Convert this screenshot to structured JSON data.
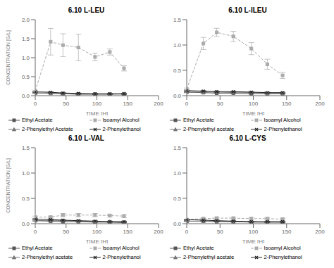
{
  "chart_data": [
    {
      "type": "line",
      "title": "6.10 L-LEU",
      "x_label": "TIME [H]",
      "y_label": "CONCENTRATION [G/L]",
      "grid": false,
      "x": [
        0,
        25,
        45,
        70,
        97,
        121,
        144
      ],
      "xlim": [
        0,
        200
      ],
      "xticks": [
        0,
        50,
        100,
        150,
        200
      ],
      "ylim": [
        0,
        2
      ],
      "yticks": [
        {
          "value": 0,
          "label": "0.0"
        },
        0.5,
        {
          "value": 1.0,
          "label": "1.0"
        },
        1.5,
        {
          "value": 2.0,
          "label": "2.0"
        }
      ],
      "series": [
        {
          "name": "Ethyl Acetate",
          "color": "#555555",
          "marker": "square",
          "line_style": "solid",
          "values": [
            0.07,
            0.07,
            0.05,
            0.04,
            0.04,
            0.04,
            0.05
          ],
          "errors": [
            0.01,
            0.01,
            0.01,
            0.01,
            0.01,
            0.01,
            0.01
          ]
        },
        {
          "name": "Isoamyl Alcohol",
          "color": "#aaaaaa",
          "marker": "square",
          "line_style": "dashed",
          "values": [
            0.12,
            1.42,
            1.33,
            1.27,
            1.02,
            1.15,
            0.72
          ],
          "errors": [
            0.02,
            0.35,
            0.3,
            0.35,
            0.1,
            0.08,
            0.07
          ]
        },
        {
          "name": "2-Phenylethyl Acetate",
          "color": "#777777",
          "marker": "triangle",
          "line_style": "solid",
          "values": [
            0.07,
            0.06,
            0.05,
            0.04,
            0.04,
            0.04,
            0.04
          ],
          "errors": [
            0.01,
            0.01,
            0.01,
            0.01,
            0.01,
            0.01,
            0.01
          ]
        },
        {
          "name": "2-Phenylethanol",
          "color": "#222222",
          "marker": "x",
          "line_style": "solid",
          "values": [
            0.1,
            0.09,
            0.07,
            0.06,
            0.05,
            0.05,
            0.05
          ],
          "errors": [
            0.01,
            0.01,
            0.01,
            0.01,
            0.01,
            0.01,
            0.01
          ]
        }
      ]
    },
    {
      "type": "line",
      "title": "6.10 L-ILEU",
      "x_label": "TIME [H]",
      "grid": false,
      "x": [
        0,
        25,
        45,
        70,
        97,
        121,
        144
      ],
      "xlim": [
        0,
        200
      ],
      "xticks": [
        0,
        50,
        100,
        150,
        200
      ],
      "ylim": [
        0,
        1.5
      ],
      "yticks": [
        {
          "value": 0,
          "label": "0.0"
        },
        0.5,
        {
          "value": 1.0,
          "label": "1.0"
        },
        1.5
      ],
      "series": [
        {
          "name": "Ethyl Acetate",
          "color": "#555555",
          "marker": "square",
          "line_style": "solid",
          "values": [
            0.07,
            0.06,
            0.05,
            0.05,
            0.04,
            0.04,
            0.04
          ],
          "errors": [
            0.01,
            0.01,
            0.01,
            0.01,
            0.01,
            0.01,
            0.01
          ]
        },
        {
          "name": "Isoamyl Alcohol",
          "color": "#aaaaaa",
          "marker": "square",
          "line_style": "dashed",
          "values": [
            0.13,
            1.03,
            1.25,
            1.17,
            0.93,
            0.62,
            0.4
          ],
          "errors": [
            0.02,
            0.12,
            0.08,
            0.1,
            0.12,
            0.1,
            0.06
          ]
        },
        {
          "name": "2-Phenylethyl acetate",
          "color": "#777777",
          "marker": "triangle",
          "line_style": "solid",
          "values": [
            0.07,
            0.07,
            0.07,
            0.06,
            0.06,
            0.05,
            0.05
          ],
          "errors": [
            0.01,
            0.01,
            0.01,
            0.01,
            0.01,
            0.01,
            0.01
          ]
        },
        {
          "name": "2-Phenylethanol",
          "color": "#222222",
          "marker": "x",
          "line_style": "solid",
          "values": [
            0.1,
            0.09,
            0.08,
            0.08,
            0.07,
            0.06,
            0.06
          ],
          "errors": [
            0.01,
            0.01,
            0.01,
            0.01,
            0.01,
            0.01,
            0.01
          ]
        }
      ]
    },
    {
      "type": "line",
      "title": "6.10 L-VAL",
      "x_label": "TIME [H]",
      "y_label": "CONCENTRATION [G/L]",
      "grid": false,
      "x": [
        0,
        25,
        45,
        70,
        97,
        121,
        144
      ],
      "xlim": [
        0,
        200
      ],
      "xticks": [
        0,
        50,
        100,
        150,
        200
      ],
      "ylim": [
        0,
        1.5
      ],
      "yticks": [
        {
          "value": 0,
          "label": "0.0"
        },
        0.5,
        {
          "value": 1.0,
          "label": "1.0"
        },
        1.5
      ],
      "series": [
        {
          "name": "Ethyl Acetate",
          "color": "#555555",
          "marker": "square",
          "line_style": "solid",
          "values": [
            0.06,
            0.05,
            0.04,
            0.04,
            0.03,
            0.03,
            0.02
          ],
          "errors": [
            0.01,
            0.01,
            0.005,
            0.005,
            0.005,
            0.005,
            0.005
          ]
        },
        {
          "name": "Isoamyl Alcohol",
          "color": "#aaaaaa",
          "marker": "square",
          "line_style": "dashed",
          "values": [
            0.13,
            0.13,
            0.17,
            0.17,
            0.17,
            0.16,
            0.15
          ],
          "errors": [
            0.02,
            0.02,
            0.03,
            0.03,
            0.03,
            0.03,
            0.03
          ]
        },
        {
          "name": "2-Phenylethyl acetate",
          "color": "#777777",
          "marker": "triangle",
          "line_style": "solid",
          "values": [
            0.06,
            0.06,
            0.06,
            0.05,
            0.04,
            0.04,
            0.03
          ],
          "errors": [
            0.01,
            0.01,
            0.01,
            0.01,
            0.005,
            0.005,
            0.005
          ]
        },
        {
          "name": "2-Phenylethanol",
          "color": "#222222",
          "marker": "x",
          "line_style": "solid",
          "values": [
            0.09,
            0.08,
            0.07,
            0.06,
            0.05,
            0.04,
            0.04
          ],
          "errors": [
            0.01,
            0.01,
            0.01,
            0.01,
            0.01,
            0.01,
            0.01
          ]
        }
      ]
    },
    {
      "type": "line",
      "title": "6.10 L-CYS",
      "x_label": "TIME [H]",
      "grid": false,
      "x": [
        0,
        25,
        45,
        70,
        97,
        121,
        144
      ],
      "xlim": [
        0,
        200
      ],
      "xticks": [
        0,
        50,
        100,
        150,
        200
      ],
      "ylim": [
        0,
        1.5
      ],
      "yticks": [
        {
          "value": 0,
          "label": "0.0"
        },
        0.5,
        {
          "value": 1.0,
          "label": "1.0"
        },
        1.5
      ],
      "series": [
        {
          "name": "Ethyl Acetate",
          "color": "#555555",
          "marker": "square",
          "line_style": "solid",
          "values": [
            0.05,
            0.05,
            0.04,
            0.04,
            0.03,
            0.03,
            0.03
          ],
          "errors": [
            0.01,
            0.01,
            0.005,
            0.005,
            0.005,
            0.005,
            0.005
          ]
        },
        {
          "name": "Isoamyl Alcohol",
          "color": "#aaaaaa",
          "marker": "square",
          "line_style": "dashed",
          "values": [
            0.08,
            0.1,
            0.11,
            0.11,
            0.1,
            0.1,
            0.09
          ],
          "errors": [
            0.01,
            0.02,
            0.02,
            0.02,
            0.02,
            0.02,
            0.02
          ]
        },
        {
          "name": "2-Phenylethyl acetate",
          "color": "#777777",
          "marker": "triangle",
          "line_style": "solid",
          "values": [
            0.05,
            0.05,
            0.05,
            0.04,
            0.04,
            0.03,
            0.03
          ],
          "errors": [
            0.005,
            0.005,
            0.005,
            0.005,
            0.005,
            0.005,
            0.005
          ]
        },
        {
          "name": "2-Phenylethanol",
          "color": "#222222",
          "marker": "x",
          "line_style": "solid",
          "values": [
            0.08,
            0.07,
            0.06,
            0.05,
            0.04,
            0.04,
            0.04
          ],
          "errors": [
            0.01,
            0.01,
            0.01,
            0.01,
            0.01,
            0.01,
            0.01
          ]
        }
      ]
    }
  ]
}
